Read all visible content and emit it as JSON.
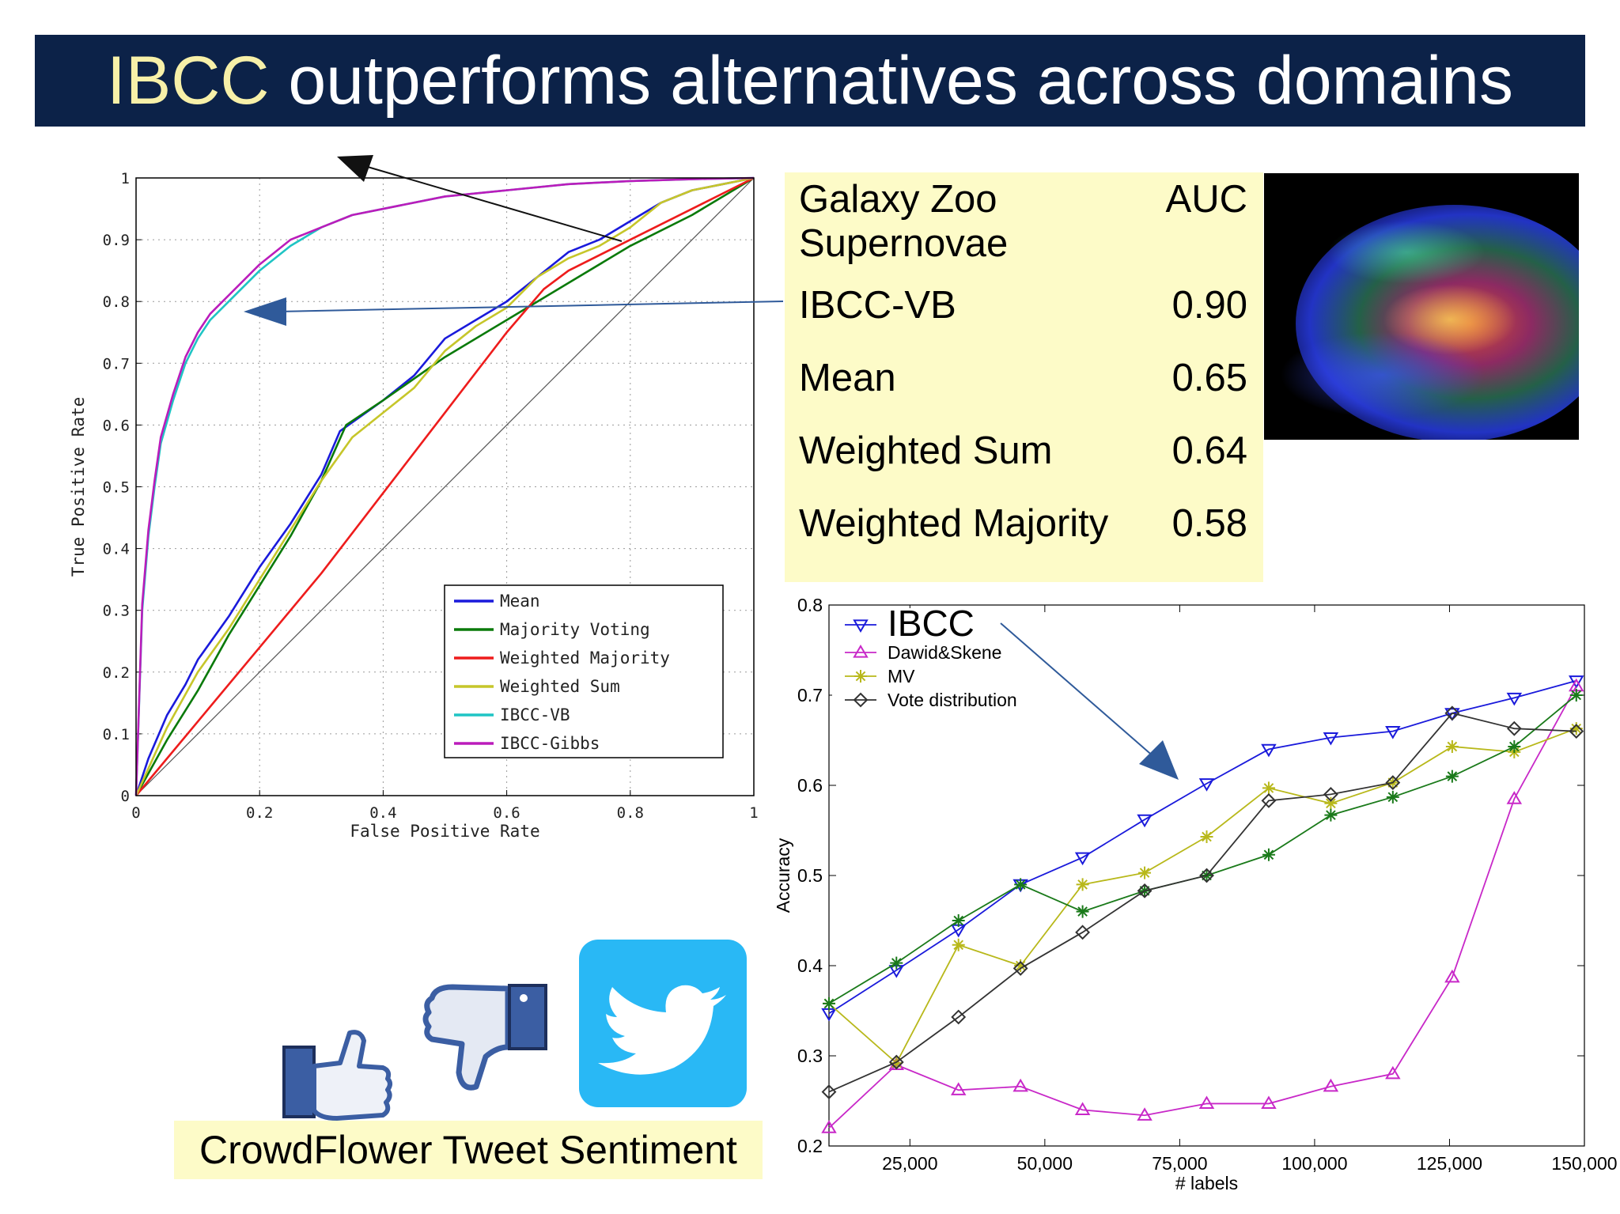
{
  "header": {
    "title_highlight": "IBCC",
    "title_rest": " outperforms alternatives across domains"
  },
  "auc_table": {
    "dataset_line1": "Galaxy Zoo",
    "dataset_line2": "Supernovae",
    "metric": "AUC",
    "rows": [
      {
        "method": "IBCC-VB",
        "auc": "0.90"
      },
      {
        "method": "Mean",
        "auc": "0.65"
      },
      {
        "method": "Weighted Sum",
        "auc": "0.64"
      },
      {
        "method": "Weighted Majority",
        "auc": "0.58"
      }
    ]
  },
  "caption": "CrowdFlower Tweet Sentiment",
  "icons": [
    "thumbs-up-icon",
    "thumbs-down-icon",
    "twitter-bird-icon",
    "supernova-image"
  ],
  "chart_data": [
    {
      "type": "line",
      "xlabel": "False Positive Rate",
      "ylabel": "True Positive Rate",
      "xlim": [
        0,
        1
      ],
      "ylim": [
        0,
        1
      ],
      "xticks": [
        "0",
        "0.2",
        "0.4",
        "0.6",
        "0.8",
        "1"
      ],
      "yticks": [
        "0",
        "0.1",
        "0.2",
        "0.3",
        "0.4",
        "0.5",
        "0.6",
        "0.7",
        "0.8",
        "0.9",
        "1"
      ],
      "grid": true,
      "legend_position": "bottom-right",
      "series": [
        {
          "name": "Mean",
          "color": "#1a1adb",
          "x": [
            0,
            0.02,
            0.05,
            0.08,
            0.1,
            0.15,
            0.2,
            0.25,
            0.3,
            0.33,
            0.4,
            0.45,
            0.5,
            0.55,
            0.6,
            0.65,
            0.7,
            0.75,
            0.8,
            0.85,
            0.9,
            0.95,
            1
          ],
          "y": [
            0,
            0.06,
            0.13,
            0.18,
            0.22,
            0.29,
            0.37,
            0.44,
            0.52,
            0.59,
            0.64,
            0.68,
            0.74,
            0.77,
            0.8,
            0.84,
            0.88,
            0.9,
            0.93,
            0.96,
            0.98,
            0.99,
            1
          ]
        },
        {
          "name": "Majority Voting",
          "color": "#0a7a0a",
          "x": [
            0,
            0.05,
            0.1,
            0.15,
            0.2,
            0.25,
            0.3,
            0.34,
            0.4,
            0.5,
            0.6,
            0.7,
            0.8,
            0.9,
            1
          ],
          "y": [
            0,
            0.09,
            0.17,
            0.26,
            0.34,
            0.42,
            0.51,
            0.6,
            0.64,
            0.71,
            0.77,
            0.83,
            0.89,
            0.94,
            1
          ]
        },
        {
          "name": "Weighted Majority",
          "color": "#ee1c1c",
          "x": [
            0,
            0.1,
            0.2,
            0.3,
            0.4,
            0.5,
            0.6,
            0.66,
            0.7,
            0.8,
            0.9,
            1
          ],
          "y": [
            0,
            0.12,
            0.24,
            0.36,
            0.49,
            0.62,
            0.75,
            0.82,
            0.85,
            0.9,
            0.95,
            1
          ]
        },
        {
          "name": "Weighted Sum",
          "color": "#c6c62a",
          "x": [
            0,
            0.05,
            0.1,
            0.15,
            0.2,
            0.25,
            0.3,
            0.35,
            0.4,
            0.45,
            0.5,
            0.55,
            0.6,
            0.65,
            0.7,
            0.75,
            0.8,
            0.85,
            0.9,
            0.95,
            1
          ],
          "y": [
            0,
            0.11,
            0.2,
            0.27,
            0.35,
            0.43,
            0.51,
            0.58,
            0.62,
            0.66,
            0.72,
            0.76,
            0.79,
            0.84,
            0.87,
            0.89,
            0.92,
            0.96,
            0.98,
            0.99,
            1
          ]
        },
        {
          "name": "IBCC-VB",
          "color": "#1fc4c4",
          "x": [
            0,
            0.01,
            0.02,
            0.03,
            0.04,
            0.06,
            0.08,
            0.1,
            0.12,
            0.15,
            0.2,
            0.25,
            0.3,
            0.35,
            0.4,
            0.5,
            0.6,
            0.7,
            0.8,
            0.9,
            1
          ],
          "y": [
            0,
            0.3,
            0.42,
            0.5,
            0.57,
            0.64,
            0.7,
            0.74,
            0.77,
            0.8,
            0.85,
            0.89,
            0.92,
            0.94,
            0.95,
            0.97,
            0.98,
            0.99,
            0.995,
            0.998,
            1
          ]
        },
        {
          "name": "IBCC-Gibbs",
          "color": "#bb1cbb",
          "x": [
            0,
            0.01,
            0.02,
            0.03,
            0.04,
            0.06,
            0.08,
            0.1,
            0.12,
            0.15,
            0.2,
            0.25,
            0.3,
            0.35,
            0.4,
            0.5,
            0.6,
            0.7,
            0.8,
            0.9,
            1
          ],
          "y": [
            0,
            0.31,
            0.43,
            0.51,
            0.58,
            0.65,
            0.71,
            0.75,
            0.78,
            0.81,
            0.86,
            0.9,
            0.92,
            0.94,
            0.95,
            0.97,
            0.98,
            0.99,
            0.995,
            0.998,
            1
          ]
        }
      ]
    },
    {
      "type": "line",
      "xlabel": "# labels",
      "ylabel": "Accuracy",
      "xlim": [
        10000,
        150000
      ],
      "ylim": [
        0.2,
        0.8
      ],
      "xticks": [
        "25,000",
        "50,000",
        "75,000",
        "100,000",
        "125,000",
        "150,000"
      ],
      "yticks": [
        "0.2",
        "0.3",
        "0.4",
        "0.5",
        "0.6",
        "0.7",
        "0.8"
      ],
      "grid": false,
      "legend_position": "top-left",
      "series": [
        {
          "name": "IBCC",
          "color": "#1a1adb",
          "marker": "triangle-down",
          "x": [
            10000,
            22500,
            34000,
            45500,
            57000,
            68500,
            80000,
            91500,
            103000,
            114500,
            125500,
            137000,
            148500
          ],
          "y": [
            0.347,
            0.395,
            0.44,
            0.49,
            0.52,
            0.562,
            0.602,
            0.64,
            0.653,
            0.66,
            0.68,
            0.697,
            0.716
          ]
        },
        {
          "name": "Dawid&Skene",
          "color": "#c828c8",
          "marker": "triangle-up",
          "x": [
            10000,
            22500,
            34000,
            45500,
            57000,
            68500,
            80000,
            91500,
            103000,
            114500,
            125500,
            137000,
            148500
          ],
          "y": [
            0.22,
            0.29,
            0.262,
            0.266,
            0.24,
            0.234,
            0.247,
            0.247,
            0.266,
            0.28,
            0.387,
            0.585,
            0.71
          ]
        },
        {
          "name": "MV",
          "color": "#b8b81a",
          "marker": "star",
          "x": [
            10000,
            22500,
            34000,
            45500,
            57000,
            68500,
            80000,
            91500,
            103000,
            114500,
            125500,
            137000,
            148500
          ],
          "y": [
            0.358,
            0.292,
            0.423,
            0.4,
            0.49,
            0.503,
            0.543,
            0.597,
            0.58,
            0.603,
            0.643,
            0.637,
            0.663
          ]
        },
        {
          "name": "",
          "color": "#1a7a1a",
          "marker": "star",
          "x": [
            10000,
            22500,
            34000,
            45500,
            57000,
            68500,
            80000,
            91500,
            103000,
            114500,
            125500,
            137000,
            148500
          ],
          "y": [
            0.358,
            0.403,
            0.45,
            0.49,
            0.46,
            0.483,
            0.5,
            0.523,
            0.567,
            0.587,
            0.61,
            0.643,
            0.7
          ]
        },
        {
          "name": "Vote distribution",
          "color": "#333333",
          "marker": "diamond",
          "x": [
            10000,
            22500,
            34000,
            45500,
            57000,
            68500,
            80000,
            91500,
            103000,
            114500,
            125500,
            137000,
            148500
          ],
          "y": [
            0.26,
            0.293,
            0.343,
            0.397,
            0.437,
            0.483,
            0.5,
            0.583,
            0.59,
            0.603,
            0.68,
            0.663,
            0.66
          ]
        }
      ]
    }
  ]
}
